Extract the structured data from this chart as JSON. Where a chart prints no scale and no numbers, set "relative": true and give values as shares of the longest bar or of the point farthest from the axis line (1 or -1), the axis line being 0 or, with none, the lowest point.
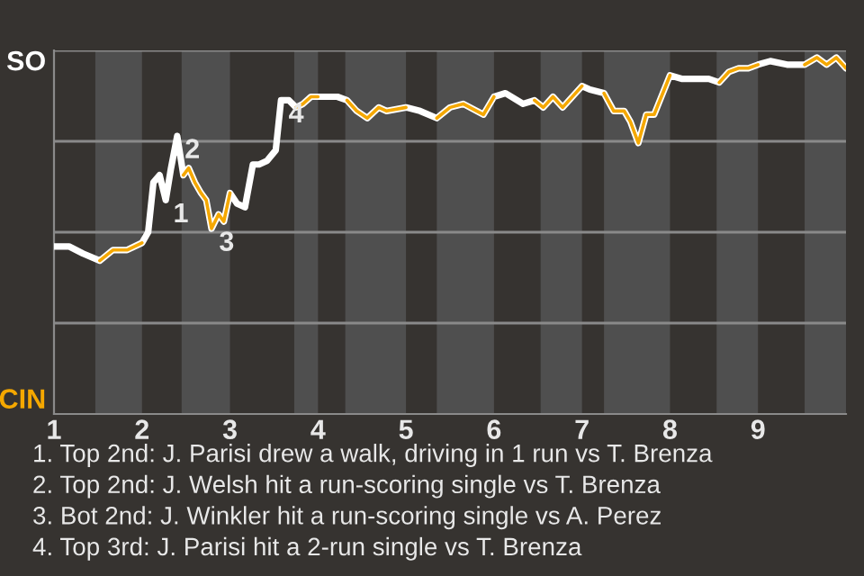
{
  "chart_data": {
    "type": "line",
    "relative": true,
    "x": [
      1,
      1.17,
      1.33,
      1.52,
      1.67,
      1.83,
      2,
      2.07,
      2.13,
      2.2,
      2.27,
      2.33,
      2.4,
      2.47,
      2.53,
      2.6,
      2.67,
      2.73,
      2.79,
      2.87,
      2.93,
      3,
      3.08,
      3.17,
      3.26,
      3.33,
      3.42,
      3.52,
      3.58,
      3.67,
      3.75,
      3.83,
      3.92,
      4,
      4.11,
      4.22,
      4.33,
      4.44,
      4.56,
      4.69,
      4.78,
      5,
      5.16,
      5.35,
      5.5,
      5.65,
      5.88,
      6,
      6.13,
      6.33,
      6.46,
      6.56,
      6.67,
      6.78,
      7,
      7.09,
      7.25,
      7.36,
      7.48,
      7.55,
      7.64,
      7.73,
      7.82,
      8,
      8.14,
      8.44,
      8.56,
      8.67,
      8.78,
      8.89,
      9,
      9.14,
      9.33,
      9.53,
      9.67,
      9.78,
      9.89,
      10
    ],
    "xlim": [
      1,
      10
    ],
    "xticks": [
      1,
      2,
      3,
      4,
      5,
      6,
      7,
      8,
      9
    ],
    "series": [
      {
        "values": [
          0.47,
          0.47,
          0.45,
          0.43,
          0.46,
          0.46,
          0.48,
          0.51,
          0.65,
          0.67,
          0.6,
          0.69,
          0.78,
          0.67,
          0.69,
          0.65,
          0.62,
          0.6,
          0.52,
          0.56,
          0.54,
          0.62,
          0.59,
          0.58,
          0.7,
          0.7,
          0.71,
          0.74,
          0.88,
          0.88,
          0.86,
          0.87,
          0.89,
          0.89,
          0.89,
          0.89,
          0.88,
          0.85,
          0.83,
          0.86,
          0.85,
          0.86,
          0.85,
          0.83,
          0.86,
          0.87,
          0.84,
          0.89,
          0.9,
          0.87,
          0.88,
          0.86,
          0.89,
          0.86,
          0.92,
          0.91,
          0.9,
          0.85,
          0.85,
          0.82,
          0.76,
          0.84,
          0.84,
          0.95,
          0.94,
          0.94,
          0.93,
          0.96,
          0.97,
          0.97,
          0.98,
          0.99,
          0.98,
          0.98,
          1,
          0.98,
          1,
          0.97
        ],
        "color": "#ffffff"
      },
      {
        "color": "#f5a800",
        "values": [
          null,
          null,
          null,
          0.43,
          0.46,
          0.46,
          0.48,
          null,
          null,
          null,
          null,
          null,
          null,
          0.67,
          0.69,
          0.65,
          0.62,
          0.6,
          0.52,
          0.56,
          0.54,
          0.62,
          null,
          null,
          null,
          null,
          null,
          null,
          null,
          null,
          0.86,
          0.87,
          0.89,
          0.89,
          null,
          null,
          0.88,
          0.85,
          0.83,
          0.86,
          0.85,
          0.86,
          null,
          0.83,
          0.86,
          0.87,
          0.84,
          0.89,
          null,
          null,
          0.88,
          0.86,
          0.89,
          0.86,
          0.92,
          null,
          0.9,
          0.85,
          0.85,
          0.82,
          0.76,
          0.84,
          0.84,
          0.95,
          null,
          null,
          0.93,
          0.96,
          0.97,
          0.97,
          0.98,
          null,
          null,
          0.98,
          1,
          0.98,
          1,
          0.97
        ]
      }
    ],
    "bands": [
      {
        "axis": "x",
        "from": 1.47,
        "to": 2,
        "color": "#4f4f4f"
      },
      {
        "axis": "x",
        "from": 2.45,
        "to": 3,
        "color": "#4f4f4f"
      },
      {
        "axis": "x",
        "from": 3.73,
        "to": 4,
        "color": "#4f4f4f"
      },
      {
        "axis": "x",
        "from": 4.31,
        "to": 5,
        "color": "#4f4f4f"
      },
      {
        "axis": "x",
        "from": 5.35,
        "to": 6,
        "color": "#4f4f4f"
      },
      {
        "axis": "x",
        "from": 6.53,
        "to": 7,
        "color": "#4f4f4f"
      },
      {
        "axis": "x",
        "from": 7.25,
        "to": 8,
        "color": "#4f4f4f"
      },
      {
        "axis": "x",
        "from": 8.53,
        "to": 9,
        "color": "#4f4f4f"
      },
      {
        "axis": "x",
        "from": 9.53,
        "to": 10,
        "color": "#4f4f4f"
      }
    ],
    "grid": "y",
    "marker": "none",
    "line_style": "solid",
    "annotations": [
      {
        "text": "1",
        "x": 2.27,
        "y": 0.6
      },
      {
        "text": "2",
        "x": 2.4,
        "y": 0.78
      },
      {
        "text": "3",
        "x": 2.79,
        "y": 0.52
      },
      {
        "text": "4",
        "x": 3.58,
        "y": 0.88
      },
      "SO",
      "CIN",
      "1. Top 2nd: J. Parisi drew a walk, driving in 1 run vs T. Brenza",
      "2. Top 2nd: J. Welsh hit a run-scoring single vs T. Brenza",
      "3. Bot 2nd: J. Winkler hit a run-scoring single vs A. Perez",
      "4. Top 3rd: J. Parisi hit a 2-run single vs T. Brenza"
    ]
  }
}
